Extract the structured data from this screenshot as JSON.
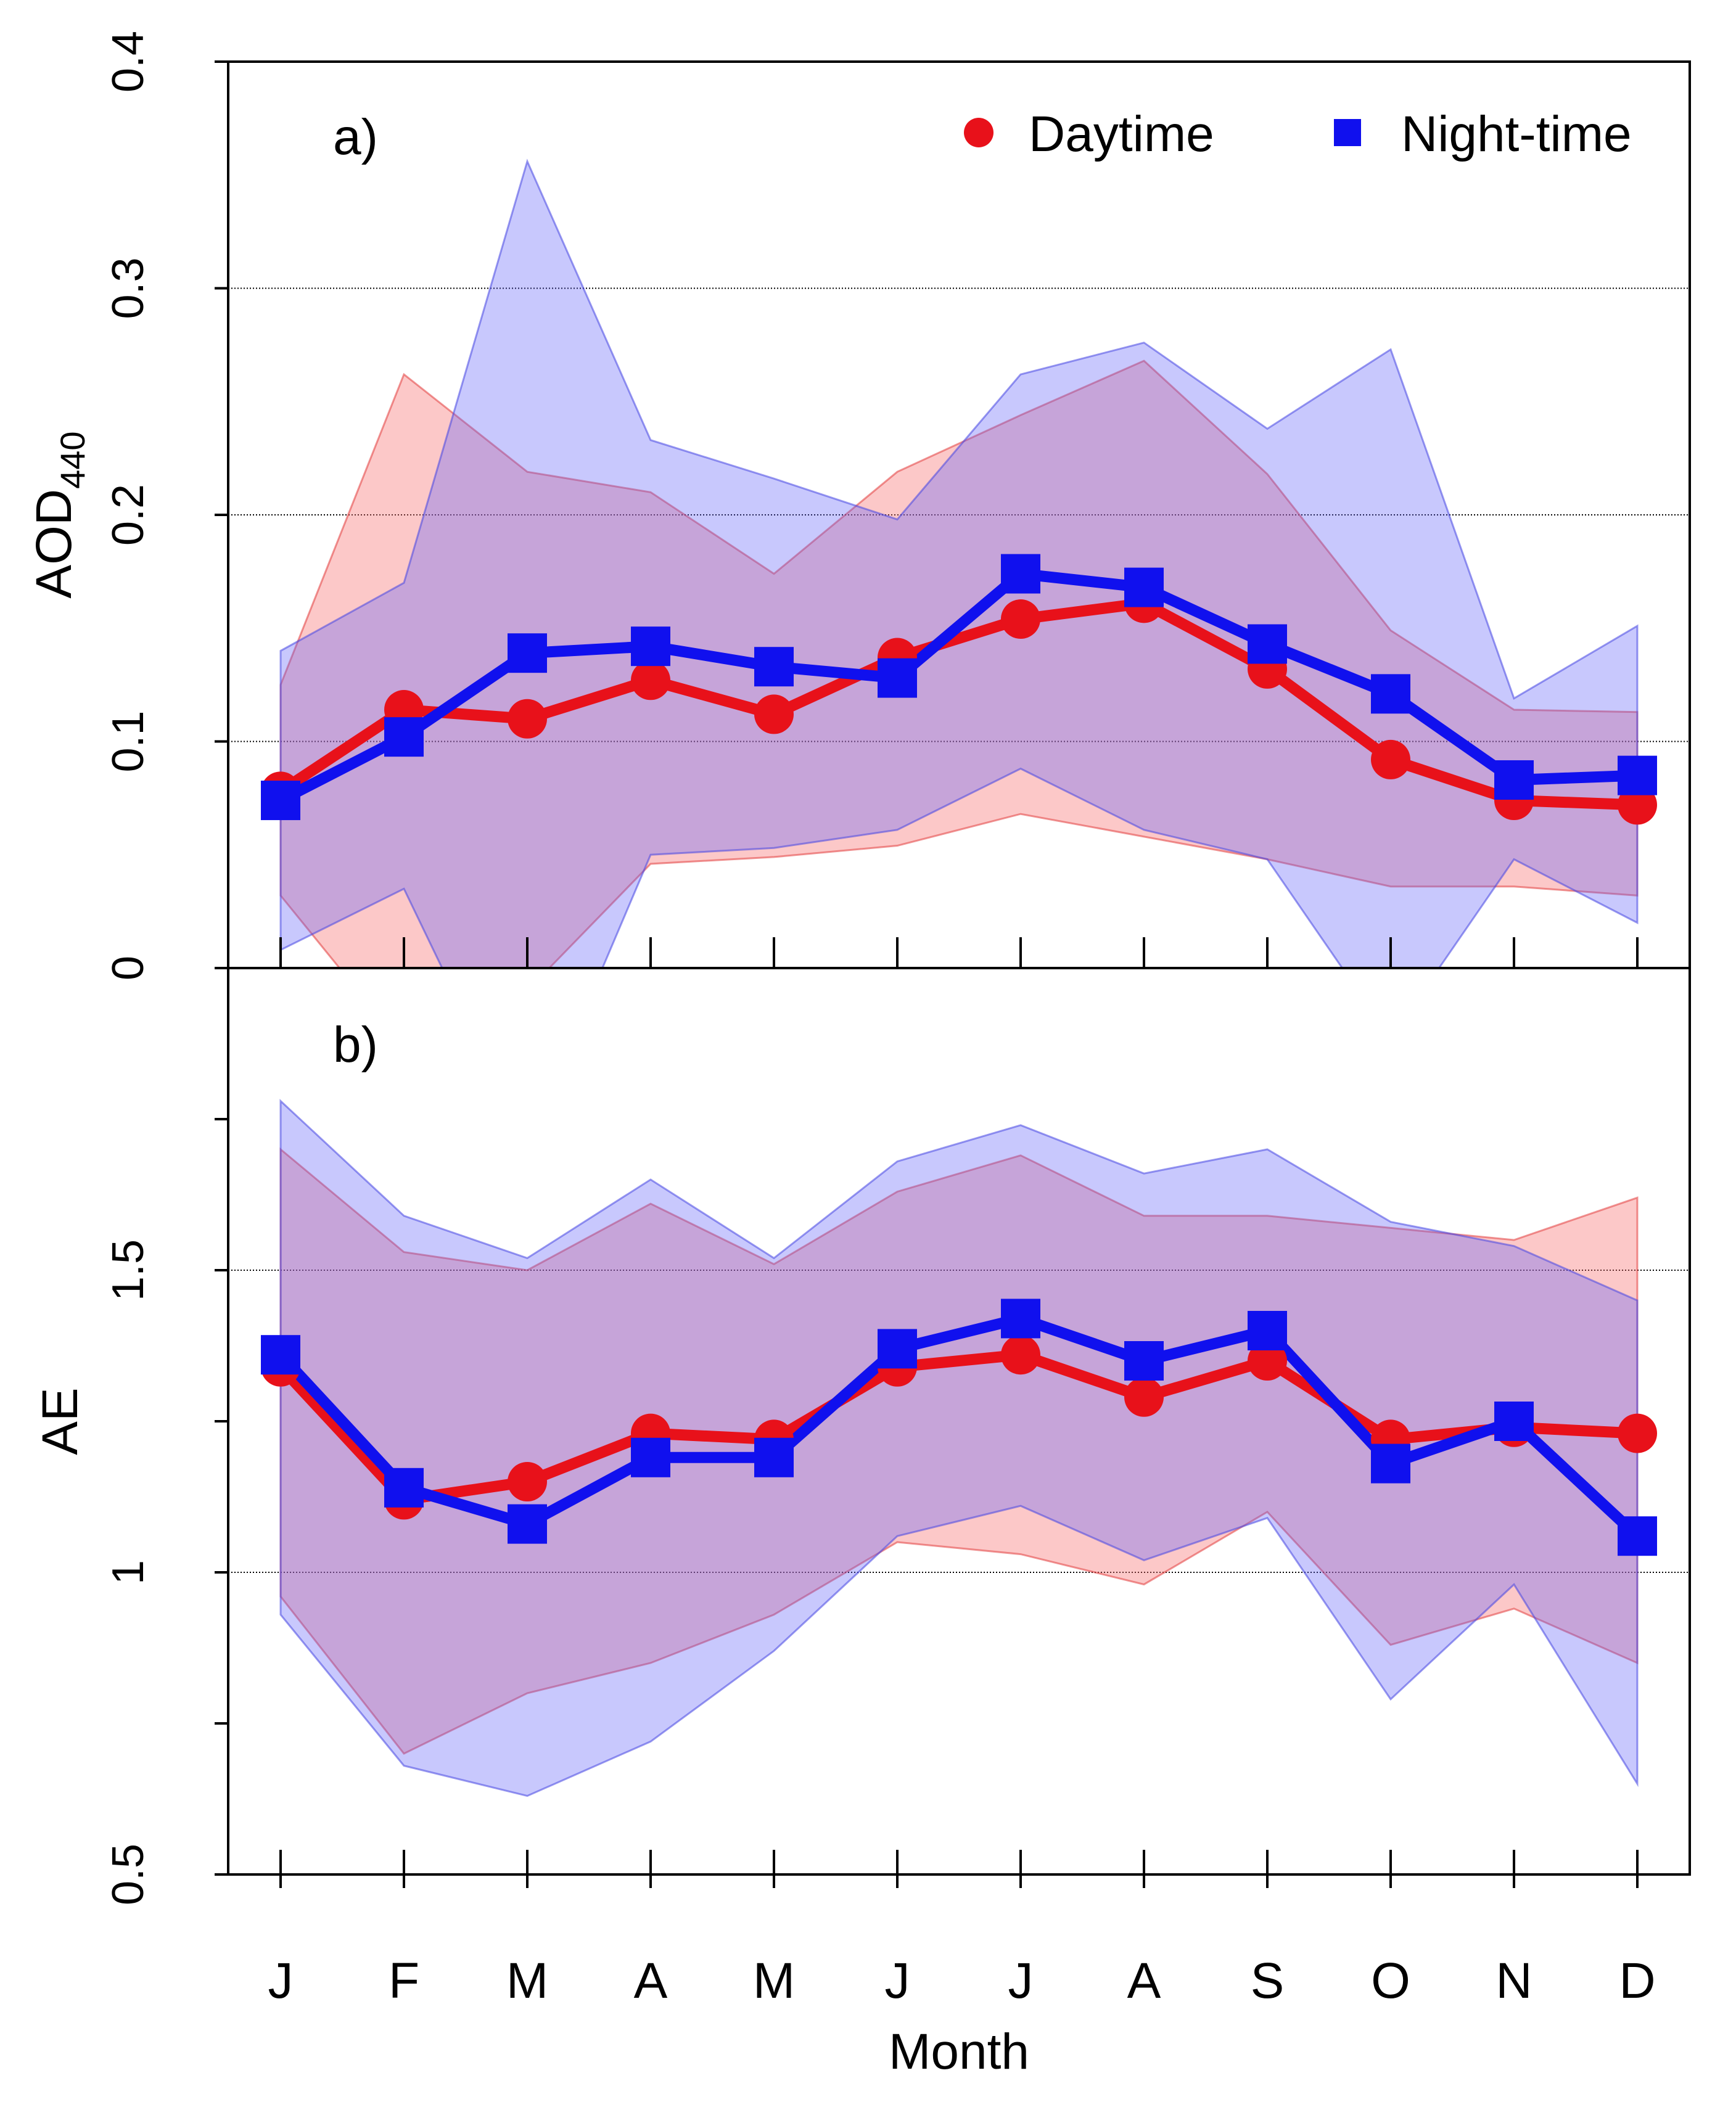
{
  "chart_data": [
    {
      "type": "line",
      "panel_label": "a)",
      "ylabel": "AOD",
      "ylabel_subscript": "440",
      "categories": [
        "J",
        "F",
        "M",
        "A",
        "M",
        "J",
        "J",
        "A",
        "S",
        "O",
        "N",
        "D"
      ],
      "ylim": [
        0,
        0.4
      ],
      "yticks": [
        0,
        0.1,
        0.2,
        0.3,
        0.4
      ],
      "ytick_labels": [
        "0",
        "0.1",
        "0.2",
        "0.3",
        "0.4"
      ],
      "gridlines": [
        0.1,
        0.2,
        0.3
      ],
      "legend": {
        "placement": "top-right",
        "entries": [
          {
            "label": "Daytime",
            "marker": "circle",
            "color": "#e8111a"
          },
          {
            "label": "Night-time",
            "marker": "square",
            "color": "#1010ee"
          }
        ]
      },
      "series": [
        {
          "name": "Daytime",
          "color": "#e8111a",
          "values": [
            0.078,
            0.114,
            0.11,
            0.127,
            0.112,
            0.137,
            0.154,
            0.161,
            0.132,
            0.092,
            0.074,
            0.072
          ],
          "band_upper": [
            0.125,
            0.262,
            0.219,
            0.21,
            0.174,
            0.219,
            0.244,
            0.268,
            0.218,
            0.149,
            0.114,
            0.113
          ],
          "band_lower": [
            0.032,
            -0.035,
            -0.01,
            0.046,
            0.049,
            0.054,
            0.068,
            0.058,
            0.048,
            0.036,
            0.036,
            0.032
          ]
        },
        {
          "name": "Night-time",
          "color": "#1010ee",
          "values": [
            0.074,
            0.102,
            0.139,
            0.142,
            0.133,
            0.128,
            0.174,
            0.168,
            0.143,
            0.121,
            0.083,
            0.085
          ],
          "band_upper": [
            0.14,
            0.17,
            0.356,
            0.233,
            0.216,
            0.198,
            0.262,
            0.276,
            0.238,
            0.273,
            0.119,
            0.151
          ],
          "band_lower": [
            0.008,
            0.035,
            -0.078,
            0.05,
            0.053,
            0.061,
            0.088,
            0.061,
            0.048,
            -0.031,
            0.048,
            0.02
          ]
        }
      ]
    },
    {
      "type": "line",
      "panel_label": "b)",
      "xlabel": "Month",
      "ylabel": "AE",
      "categories": [
        "J",
        "F",
        "M",
        "A",
        "M",
        "J",
        "J",
        "A",
        "S",
        "O",
        "N",
        "D"
      ],
      "ylim": [
        0.5,
        2.0
      ],
      "yticks": [
        0.5,
        0.75,
        1.0,
        1.25,
        1.5,
        1.75
      ],
      "ytick_labels": [
        "0.5",
        "",
        "1",
        "",
        "1.5",
        ""
      ],
      "gridlines": [
        1.0,
        1.5
      ],
      "series": [
        {
          "name": "Daytime",
          "color": "#e8111a",
          "values": [
            1.34,
            1.12,
            1.15,
            1.23,
            1.22,
            1.34,
            1.36,
            1.29,
            1.35,
            1.22,
            1.24,
            1.23
          ],
          "band_upper": [
            1.7,
            1.53,
            1.5,
            1.61,
            1.51,
            1.63,
            1.69,
            1.59,
            1.59,
            1.57,
            1.55,
            1.62
          ],
          "band_lower": [
            0.96,
            0.7,
            0.8,
            0.85,
            0.93,
            1.05,
            1.03,
            0.98,
            1.1,
            0.88,
            0.94,
            0.85
          ]
        },
        {
          "name": "Night-time",
          "color": "#1010ee",
          "values": [
            1.36,
            1.14,
            1.08,
            1.19,
            1.19,
            1.37,
            1.42,
            1.35,
            1.4,
            1.18,
            1.25,
            1.06
          ],
          "band_upper": [
            1.78,
            1.59,
            1.52,
            1.65,
            1.52,
            1.68,
            1.74,
            1.66,
            1.7,
            1.58,
            1.54,
            1.45
          ],
          "band_lower": [
            0.93,
            0.68,
            0.63,
            0.72,
            0.87,
            1.06,
            1.11,
            1.02,
            1.09,
            0.79,
            0.98,
            0.65
          ]
        }
      ]
    }
  ]
}
